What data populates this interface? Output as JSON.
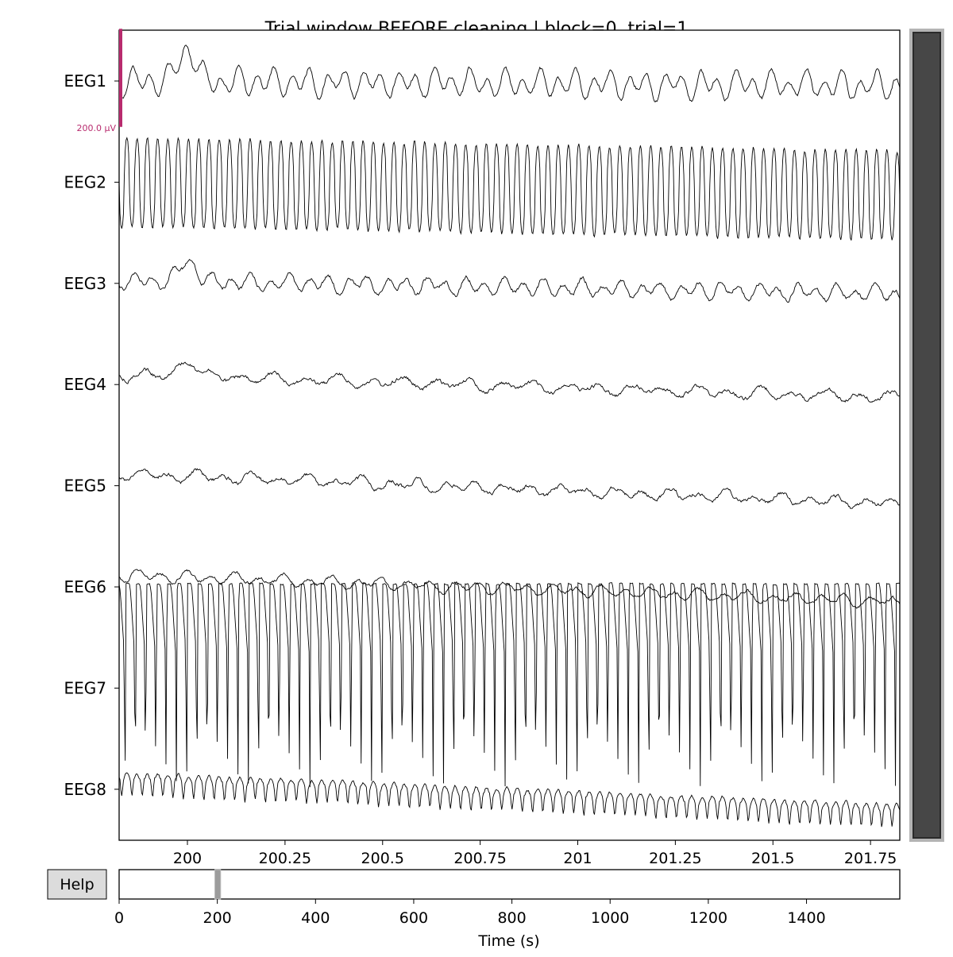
{
  "chart_data": {
    "type": "line",
    "title": "Trial window BEFORE cleaning | block=0, trial=1",
    "xlabel": "Time (s)",
    "channels": [
      "EEG1",
      "EEG2",
      "EEG3",
      "EEG4",
      "EEG5",
      "EEG6",
      "EEG7",
      "EEG8"
    ],
    "xlim": [
      199.825,
      201.825
    ],
    "x_ticks": [
      200,
      200.25,
      200.5,
      200.75,
      201,
      201.25,
      201.5,
      201.75
    ],
    "x_tick_labels": [
      "200",
      "200.25",
      "200.5",
      "200.75",
      "201",
      "201.25",
      "201.5",
      "201.75"
    ],
    "scale_bar": {
      "label": "200.0 µV",
      "color": "#b82b6e",
      "channel": "EEG1"
    },
    "traces": [
      {
        "name": "EEG1",
        "style": "alpha",
        "osc_amp": 0.1,
        "freq": 22,
        "noise": 0.05,
        "drift": [
          0.0,
          0.05
        ],
        "bump": {
          "t": 200.0,
          "amp": -0.32
        }
      },
      {
        "name": "EEG2",
        "style": "spiky",
        "osc_amp": 0.44,
        "freq": 38,
        "noise": 0.04,
        "drift": [
          0.0,
          0.13
        ]
      },
      {
        "name": "EEG3",
        "style": "alpha",
        "osc_amp": 0.06,
        "freq": 20,
        "noise": 0.05,
        "drift": [
          -0.03,
          0.1
        ],
        "bump": {
          "t": 200.0,
          "amp": -0.2
        }
      },
      {
        "name": "EEG4",
        "style": "alpha",
        "osc_amp": 0.04,
        "freq": 12,
        "noise": 0.05,
        "drift": [
          -0.1,
          0.13
        ],
        "bump": {
          "t": 200.0,
          "amp": -0.18
        }
      },
      {
        "name": "EEG5",
        "style": "alpha",
        "osc_amp": 0.04,
        "freq": 14,
        "noise": 0.05,
        "drift": [
          -0.12,
          0.18
        ]
      },
      {
        "name": "EEG6",
        "style": "alpha",
        "osc_amp": 0.04,
        "freq": 16,
        "noise": 0.04,
        "drift": [
          -0.12,
          0.15
        ]
      },
      {
        "name": "EEG7",
        "style": "ecg",
        "osc_amp": 1.32,
        "freq": 38,
        "noise": 0.02,
        "drift": [
          0.0,
          0.0
        ],
        "top_offset": -1.03,
        "bottom_offset": 1.0
      },
      {
        "name": "EEG8",
        "style": "spiky_low",
        "osc_amp": 0.18,
        "freq": 38,
        "noise": 0.04,
        "drift": [
          -0.12,
          0.2
        ]
      }
    ],
    "overview": {
      "xlim": [
        0,
        1590
      ],
      "x_ticks": [
        0,
        200,
        400,
        600,
        800,
        1000,
        1200,
        1400
      ],
      "x_tick_labels": [
        "0",
        "200",
        "400",
        "600",
        "800",
        "1000",
        "1200",
        "1400"
      ],
      "window": [
        199.825,
        201.825
      ]
    },
    "vertical_scrollbar": {
      "visible_fraction": 1.0
    }
  },
  "controls": {
    "help_label": "Help"
  }
}
